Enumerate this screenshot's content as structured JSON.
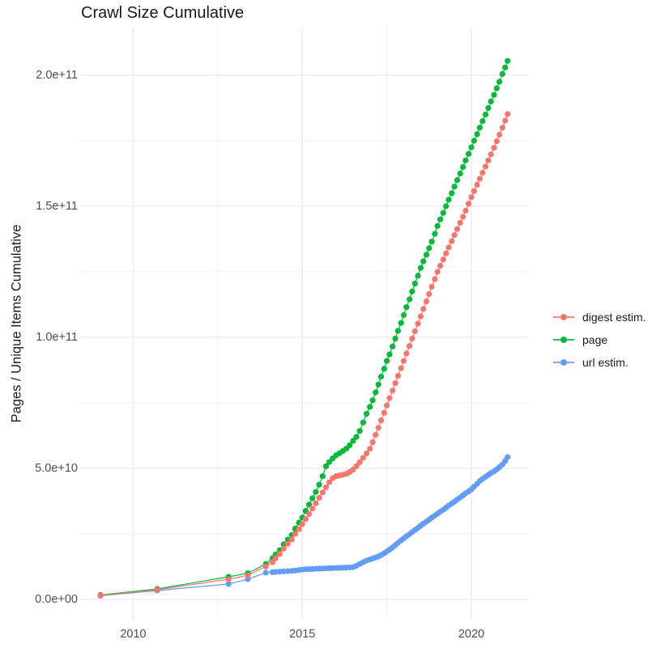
{
  "title": "Crawl Size Cumulative",
  "chart_data": {
    "type": "line",
    "title": "Crawl Size Cumulative",
    "xlabel": "",
    "ylabel": "Pages / Unique Items Cumulative",
    "value_unit": "pages (values in units of 1e9)",
    "grid": "on",
    "legend_position": "right",
    "xlim": [
      2008.455,
      2021.677
    ],
    "ylim_e9": [
      -7.72,
      218.52
    ],
    "x_axis": {
      "ticks": [
        {
          "value": 2010,
          "label": "2010"
        },
        {
          "value": 2015,
          "label": "2015"
        },
        {
          "value": 2020,
          "label": "2020"
        }
      ],
      "minor_ticks": [
        2012.5,
        2017.5
      ]
    },
    "y_axis": {
      "ticks": [
        {
          "value": 0,
          "label": "0.0e+00"
        },
        {
          "value": 50,
          "label": "5.0e+10"
        },
        {
          "value": 100,
          "label": "1.0e+11"
        },
        {
          "value": 150,
          "label": "1.5e+11"
        },
        {
          "value": 200,
          "label": "2.0e+11"
        }
      ],
      "minor_ticks": [
        25,
        75,
        125,
        175
      ]
    },
    "series": [
      {
        "name": "digest estim.",
        "color": "#F8766D",
        "points": [
          [
            2009.03,
            1.5
          ],
          [
            2010.71,
            3.7
          ],
          [
            2012.82,
            7.7
          ],
          [
            2013.39,
            9.2
          ],
          [
            2013.92,
            12.6
          ],
          [
            2014.12,
            14.2
          ],
          [
            2014.21,
            15.7
          ],
          [
            2014.33,
            17.3
          ],
          [
            2014.45,
            19.4
          ],
          [
            2014.57,
            21.2
          ],
          [
            2014.69,
            22.9
          ],
          [
            2014.79,
            25.0
          ],
          [
            2014.9,
            26.8
          ],
          [
            2015.0,
            28.7
          ],
          [
            2015.1,
            30.6
          ],
          [
            2015.2,
            32.6
          ],
          [
            2015.3,
            34.7
          ],
          [
            2015.4,
            36.7
          ],
          [
            2015.5,
            38.8
          ],
          [
            2015.6,
            40.8
          ],
          [
            2015.7,
            42.8
          ],
          [
            2015.8,
            44.7
          ],
          [
            2015.9,
            46.3
          ],
          [
            2016.0,
            47.0
          ],
          [
            2016.1,
            47.3
          ],
          [
            2016.2,
            47.6
          ],
          [
            2016.3,
            47.9
          ],
          [
            2016.4,
            48.6
          ],
          [
            2016.5,
            49.5
          ],
          [
            2016.6,
            50.8
          ],
          [
            2016.7,
            52.3
          ],
          [
            2016.8,
            54.0
          ],
          [
            2016.9,
            55.7
          ],
          [
            2017.0,
            57.5
          ],
          [
            2017.08,
            60.0
          ],
          [
            2017.17,
            62.8
          ],
          [
            2017.25,
            65.5
          ],
          [
            2017.33,
            68.3
          ],
          [
            2017.42,
            71.2
          ],
          [
            2017.5,
            74.0
          ],
          [
            2017.58,
            76.8
          ],
          [
            2017.67,
            79.7
          ],
          [
            2017.75,
            82.5
          ],
          [
            2017.83,
            85.3
          ],
          [
            2017.92,
            88.2
          ],
          [
            2018.0,
            91.0
          ],
          [
            2018.08,
            93.8
          ],
          [
            2018.17,
            96.7
          ],
          [
            2018.25,
            99.5
          ],
          [
            2018.33,
            102.3
          ],
          [
            2018.42,
            105.2
          ],
          [
            2018.5,
            108.0
          ],
          [
            2018.58,
            110.8
          ],
          [
            2018.67,
            113.7
          ],
          [
            2018.75,
            116.5
          ],
          [
            2018.83,
            119.3
          ],
          [
            2018.92,
            122.2
          ],
          [
            2019.0,
            125.0
          ],
          [
            2019.08,
            127.3
          ],
          [
            2019.17,
            129.7
          ],
          [
            2019.25,
            132.0
          ],
          [
            2019.33,
            134.3
          ],
          [
            2019.42,
            136.7
          ],
          [
            2019.5,
            139.0
          ],
          [
            2019.58,
            141.3
          ],
          [
            2019.67,
            143.7
          ],
          [
            2019.75,
            146.0
          ],
          [
            2019.83,
            148.3
          ],
          [
            2019.92,
            151.0
          ],
          [
            2020.0,
            153.5
          ],
          [
            2020.08,
            155.8
          ],
          [
            2020.17,
            158.2
          ],
          [
            2020.25,
            160.5
          ],
          [
            2020.33,
            162.8
          ],
          [
            2020.42,
            165.2
          ],
          [
            2020.5,
            167.5
          ],
          [
            2020.58,
            169.8
          ],
          [
            2020.67,
            172.3
          ],
          [
            2020.75,
            174.8
          ],
          [
            2020.83,
            177.3
          ],
          [
            2020.92,
            180.0
          ],
          [
            2021.0,
            182.7
          ],
          [
            2021.07,
            185.2
          ]
        ]
      },
      {
        "name": "page",
        "color": "#00BA38",
        "points": [
          [
            2009.03,
            1.7
          ],
          [
            2010.71,
            4.0
          ],
          [
            2012.82,
            8.6
          ],
          [
            2013.39,
            10.0
          ],
          [
            2013.92,
            13.5
          ],
          [
            2014.12,
            15.7
          ],
          [
            2014.21,
            17.2
          ],
          [
            2014.33,
            18.8
          ],
          [
            2014.45,
            21.0
          ],
          [
            2014.57,
            22.8
          ],
          [
            2014.69,
            24.6
          ],
          [
            2014.79,
            27.0
          ],
          [
            2014.9,
            29.3
          ],
          [
            2015.0,
            31.2
          ],
          [
            2015.1,
            33.8
          ],
          [
            2015.2,
            36.2
          ],
          [
            2015.3,
            38.6
          ],
          [
            2015.4,
            41.0
          ],
          [
            2015.5,
            43.8
          ],
          [
            2015.6,
            47.0
          ],
          [
            2015.7,
            50.8
          ],
          [
            2015.8,
            52.4
          ],
          [
            2015.9,
            53.8
          ],
          [
            2016.0,
            55.0
          ],
          [
            2016.1,
            55.8
          ],
          [
            2016.2,
            56.6
          ],
          [
            2016.3,
            57.5
          ],
          [
            2016.4,
            58.8
          ],
          [
            2016.5,
            60.5
          ],
          [
            2016.6,
            62.0
          ],
          [
            2016.7,
            64.3
          ],
          [
            2016.8,
            67.5
          ],
          [
            2016.9,
            70.8
          ],
          [
            2017.0,
            73.5
          ],
          [
            2017.08,
            76.0
          ],
          [
            2017.17,
            79.0
          ],
          [
            2017.25,
            82.0
          ],
          [
            2017.33,
            85.0
          ],
          [
            2017.42,
            88.0
          ],
          [
            2017.5,
            91.0
          ],
          [
            2017.58,
            93.5
          ],
          [
            2017.67,
            96.5
          ],
          [
            2017.75,
            99.5
          ],
          [
            2017.83,
            102.5
          ],
          [
            2017.92,
            105.5
          ],
          [
            2018.0,
            108.5
          ],
          [
            2018.08,
            111.5
          ],
          [
            2018.17,
            114.5
          ],
          [
            2018.25,
            117.5
          ],
          [
            2018.33,
            120.5
          ],
          [
            2018.42,
            123.5
          ],
          [
            2018.5,
            126.5
          ],
          [
            2018.58,
            129.0
          ],
          [
            2018.67,
            131.5
          ],
          [
            2018.75,
            134.0
          ],
          [
            2018.83,
            136.5
          ],
          [
            2018.92,
            139.5
          ],
          [
            2019.0,
            142.5
          ],
          [
            2019.08,
            145.0
          ],
          [
            2019.17,
            147.5
          ],
          [
            2019.25,
            150.0
          ],
          [
            2019.33,
            152.5
          ],
          [
            2019.42,
            155.0
          ],
          [
            2019.5,
            157.5
          ],
          [
            2019.58,
            160.0
          ],
          [
            2019.67,
            162.5
          ],
          [
            2019.75,
            165.0
          ],
          [
            2019.83,
            167.5
          ],
          [
            2019.92,
            170.0
          ],
          [
            2020.0,
            172.5
          ],
          [
            2020.08,
            175.0
          ],
          [
            2020.17,
            177.5
          ],
          [
            2020.25,
            180.0
          ],
          [
            2020.33,
            182.5
          ],
          [
            2020.42,
            185.0
          ],
          [
            2020.5,
            187.5
          ],
          [
            2020.58,
            190.0
          ],
          [
            2020.67,
            192.5
          ],
          [
            2020.75,
            195.0
          ],
          [
            2020.83,
            197.5
          ],
          [
            2020.92,
            200.5
          ],
          [
            2021.0,
            203.0
          ],
          [
            2021.07,
            205.5
          ]
        ]
      },
      {
        "name": "url estim.",
        "color": "#619CFF",
        "points": [
          [
            2009.03,
            1.4
          ],
          [
            2010.71,
            3.4
          ],
          [
            2012.82,
            5.9
          ],
          [
            2013.39,
            7.7
          ],
          [
            2013.92,
            10.2
          ],
          [
            2014.12,
            10.4
          ],
          [
            2014.21,
            10.5
          ],
          [
            2014.33,
            10.6
          ],
          [
            2014.45,
            10.7
          ],
          [
            2014.57,
            10.8
          ],
          [
            2014.69,
            10.9
          ],
          [
            2014.79,
            11.0
          ],
          [
            2014.9,
            11.2
          ],
          [
            2015.0,
            11.4
          ],
          [
            2015.1,
            11.5
          ],
          [
            2015.2,
            11.55
          ],
          [
            2015.3,
            11.6
          ],
          [
            2015.4,
            11.7
          ],
          [
            2015.5,
            11.75
          ],
          [
            2015.6,
            11.8
          ],
          [
            2015.7,
            11.85
          ],
          [
            2015.8,
            11.9
          ],
          [
            2015.9,
            11.95
          ],
          [
            2016.0,
            12.0
          ],
          [
            2016.1,
            12.05
          ],
          [
            2016.2,
            12.1
          ],
          [
            2016.3,
            12.15
          ],
          [
            2016.4,
            12.2
          ],
          [
            2016.5,
            12.3
          ],
          [
            2016.6,
            12.8
          ],
          [
            2016.7,
            13.5
          ],
          [
            2016.8,
            14.2
          ],
          [
            2016.9,
            14.8
          ],
          [
            2017.0,
            15.2
          ],
          [
            2017.08,
            15.6
          ],
          [
            2017.17,
            16.0
          ],
          [
            2017.25,
            16.4
          ],
          [
            2017.33,
            16.9
          ],
          [
            2017.42,
            17.6
          ],
          [
            2017.5,
            18.3
          ],
          [
            2017.58,
            19.0
          ],
          [
            2017.67,
            19.8
          ],
          [
            2017.75,
            20.7
          ],
          [
            2017.83,
            21.6
          ],
          [
            2017.92,
            22.5
          ],
          [
            2018.0,
            23.3
          ],
          [
            2018.08,
            24.1
          ],
          [
            2018.17,
            24.9
          ],
          [
            2018.25,
            25.7
          ],
          [
            2018.33,
            26.5
          ],
          [
            2018.42,
            27.3
          ],
          [
            2018.5,
            28.1
          ],
          [
            2018.58,
            28.9
          ],
          [
            2018.67,
            29.7
          ],
          [
            2018.75,
            30.4
          ],
          [
            2018.83,
            31.2
          ],
          [
            2018.92,
            32.0
          ],
          [
            2019.0,
            32.7
          ],
          [
            2019.08,
            33.5
          ],
          [
            2019.17,
            34.2
          ],
          [
            2019.25,
            35.0
          ],
          [
            2019.33,
            35.8
          ],
          [
            2019.42,
            36.6
          ],
          [
            2019.5,
            37.3
          ],
          [
            2019.58,
            38.1
          ],
          [
            2019.67,
            38.9
          ],
          [
            2019.75,
            39.7
          ],
          [
            2019.83,
            40.5
          ],
          [
            2019.92,
            41.2
          ],
          [
            2020.0,
            42.0
          ],
          [
            2020.08,
            43.0
          ],
          [
            2020.17,
            44.1
          ],
          [
            2020.25,
            45.2
          ],
          [
            2020.33,
            46.0
          ],
          [
            2020.42,
            46.8
          ],
          [
            2020.5,
            47.5
          ],
          [
            2020.58,
            48.2
          ],
          [
            2020.67,
            48.9
          ],
          [
            2020.75,
            49.6
          ],
          [
            2020.83,
            50.5
          ],
          [
            2020.92,
            51.5
          ],
          [
            2021.0,
            52.8
          ],
          [
            2021.07,
            54.3
          ]
        ]
      }
    ],
    "style": {
      "background": "#ffffff",
      "grid_major_color": "#ebebeb",
      "grid_minor_color": "#f1f1f1",
      "axis_text_color": "#4d4d4d",
      "title_color": "#1a1a1a",
      "legend_text_color": "#1a1a1a"
    }
  }
}
